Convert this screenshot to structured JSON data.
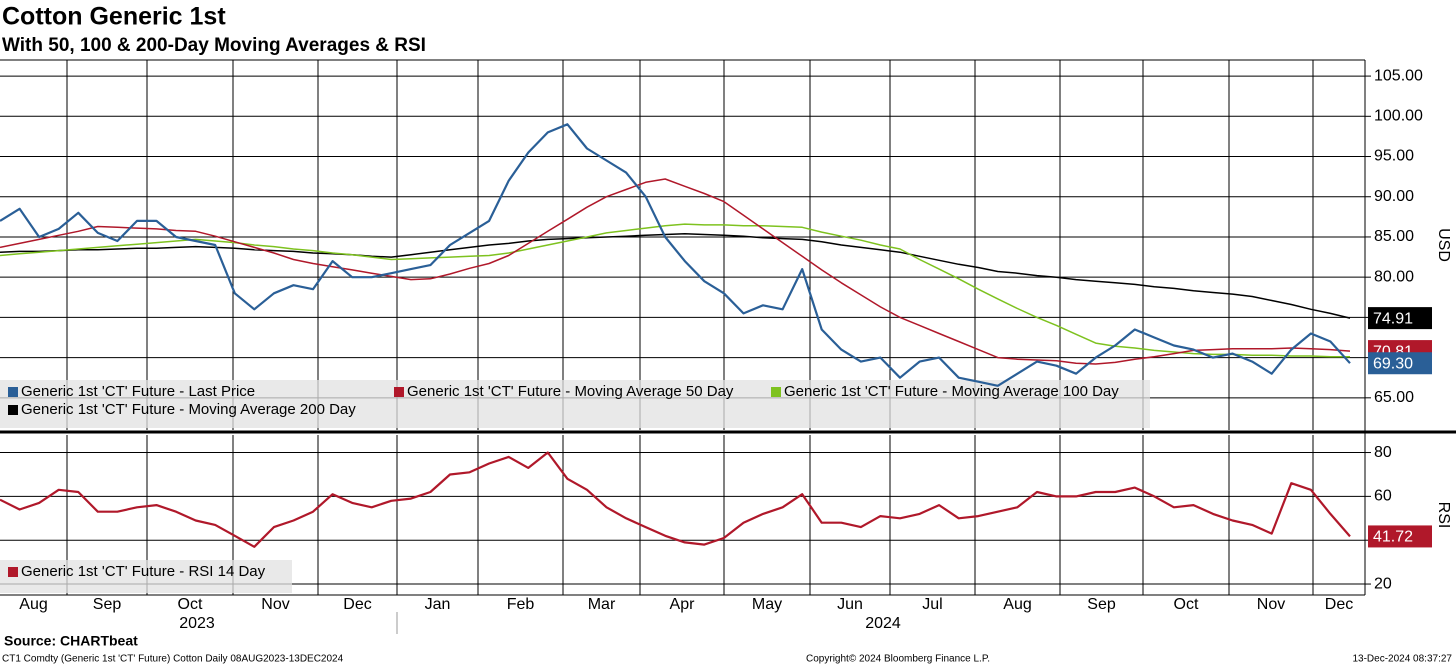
{
  "title": "Cotton Generic 1st",
  "subtitle": "With 50, 100 & 200-Day Moving Averages & RSI",
  "source": "Source: CHARTbeat",
  "footer_left": "CT1 Comdty (Generic 1st 'CT' Future) Cotton  Daily 08AUG2023-13DEC2024",
  "footer_center": "Copyright© 2024 Bloomberg Finance L.P.",
  "footer_right": "13-Dec-2024 08:37:27",
  "month_labels": [
    "Aug",
    "Sep",
    "Oct",
    "Nov",
    "Dec",
    "Jan",
    "Feb",
    "Mar",
    "Apr",
    "May",
    "Jun",
    "Jul",
    "Aug",
    "Sep",
    "Oct",
    "Nov",
    "Dec"
  ],
  "year_labels": [
    "2023",
    "2024"
  ],
  "chart_data": [
    {
      "type": "line",
      "y_label": "USD",
      "grid": true,
      "ylim": [
        61,
        107
      ],
      "yticks": [
        {
          "value": 65,
          "label": "65.00"
        },
        {
          "value": 70,
          "label": "70.00"
        },
        {
          "value": 75,
          "label": "75.00"
        },
        {
          "value": 80,
          "label": "80.00"
        },
        {
          "value": 85,
          "label": "85.00"
        },
        {
          "value": 90,
          "label": "90.00"
        },
        {
          "value": 95,
          "label": "95.00"
        },
        {
          "value": 100,
          "label": "100.00"
        },
        {
          "value": 105,
          "label": "105.00"
        }
      ],
      "series": [
        {
          "name": "Generic 1st 'CT' Future - Last Price",
          "color": "#2a5f97",
          "last_label": "69.30",
          "values": [
            87,
            88.5,
            85,
            86,
            88,
            85.5,
            84.5,
            87,
            87,
            85,
            84.5,
            84,
            78,
            76,
            78,
            79,
            78.5,
            82,
            80,
            80,
            80.5,
            81,
            81.5,
            84,
            85.5,
            87,
            92,
            95.5,
            98,
            99,
            96,
            94.5,
            93,
            90,
            85,
            82,
            79.5,
            78,
            75.5,
            76.5,
            76,
            81,
            73.5,
            71,
            69.5,
            70,
            67.5,
            69.5,
            70,
            67.5,
            67,
            66.5,
            68,
            69.5,
            69,
            68,
            70,
            71.5,
            73.5,
            72.5,
            71.5,
            71,
            70,
            70.5,
            69.5,
            68,
            71,
            73,
            72,
            69.3
          ]
        },
        {
          "name": "Generic 1st 'CT' Future - Moving Average 50 Day",
          "color": "#b0182a",
          "last_label": "70.81",
          "values": [
            83.7,
            84.2,
            84.7,
            85.2,
            85.7,
            86.3,
            86.2,
            86.1,
            86,
            85.8,
            85.7,
            85.1,
            84.4,
            83.7,
            83,
            82.2,
            81.7,
            81.3,
            80.9,
            80.5,
            80.1,
            79.7,
            79.8,
            80.4,
            81.1,
            81.7,
            82.7,
            84.2,
            85.7,
            87.2,
            88.7,
            90,
            90.9,
            91.8,
            92.2,
            91.3,
            90.4,
            89.4,
            87.7,
            86,
            84.3,
            82.6,
            80.9,
            79.3,
            77.8,
            76.3,
            75,
            74,
            73,
            72,
            71,
            70,
            69.8,
            69.7,
            69.6,
            69.3,
            69.2,
            69.4,
            69.8,
            70.1,
            70.5,
            70.9,
            71,
            71.1,
            71.1,
            71.1,
            71.2,
            71.1,
            71,
            70.81
          ]
        },
        {
          "name": "Generic 1st 'CT' Future - Moving Average 100 Day",
          "color": "#7ec21f",
          "values": [
            82.7,
            82.9,
            83.1,
            83.3,
            83.5,
            83.7,
            83.9,
            84.1,
            84.3,
            84.5,
            84.7,
            84.5,
            84.3,
            84,
            83.8,
            83.5,
            83.3,
            83,
            82.8,
            82.5,
            82.2,
            82.3,
            82.4,
            82.5,
            82.6,
            82.7,
            83,
            83.5,
            84,
            84.5,
            85,
            85.5,
            85.8,
            86.1,
            86.4,
            86.6,
            86.5,
            86.5,
            86.4,
            86.4,
            86.3,
            86.2,
            85.6,
            85.1,
            84.6,
            84,
            83.5,
            82.2,
            81,
            79.8,
            78.5,
            77.3,
            76.1,
            75,
            74,
            72.9,
            71.8,
            71.4,
            71.2,
            70.9,
            70.7,
            70.5,
            70.4,
            70.4,
            70.3,
            70.3,
            70.2,
            70.2,
            70.1,
            70.1
          ]
        },
        {
          "name": "Generic 1st 'CT' Future - Moving Average 200 Day",
          "color": "#000000",
          "last_label": "74.91",
          "values": [
            83.1,
            83.2,
            83.2,
            83.3,
            83.4,
            83.4,
            83.5,
            83.6,
            83.6,
            83.7,
            83.8,
            83.7,
            83.6,
            83.4,
            83.3,
            83.2,
            83,
            82.9,
            82.8,
            82.6,
            82.5,
            82.8,
            83.1,
            83.4,
            83.7,
            84,
            84.2,
            84.5,
            84.7,
            84.8,
            84.9,
            85,
            85.1,
            85.2,
            85.3,
            85.4,
            85.3,
            85.2,
            85.1,
            84.9,
            84.8,
            84.7,
            84.4,
            84,
            83.7,
            83.4,
            83.1,
            82.6,
            82.1,
            81.6,
            81.2,
            80.7,
            80.5,
            80.2,
            80,
            79.7,
            79.5,
            79.3,
            79.1,
            78.8,
            78.6,
            78.3,
            78.1,
            77.9,
            77.6,
            77.1,
            76.6,
            76,
            75.5,
            74.91
          ]
        }
      ]
    },
    {
      "type": "line",
      "y_label": "RSI",
      "grid": true,
      "ylim": [
        15,
        88
      ],
      "yticks": [
        20,
        40,
        60,
        80
      ],
      "series": [
        {
          "name": "Generic 1st 'CT' Future - RSI 14 Day",
          "color": "#b0182a",
          "last_label": "41.72",
          "values": [
            58.5,
            54,
            57,
            63,
            62,
            53,
            53,
            55,
            56,
            53,
            49,
            47,
            42,
            37,
            46,
            49,
            53,
            61,
            57,
            55,
            58,
            59,
            62,
            70,
            71,
            75,
            78,
            73,
            80,
            68,
            63,
            55,
            50,
            46,
            42,
            39,
            38,
            41,
            48,
            52,
            55,
            61,
            48,
            48,
            46,
            51,
            50,
            52,
            56,
            50,
            51,
            53,
            55,
            62,
            60,
            60,
            62,
            62,
            64,
            60,
            55,
            56,
            52,
            49,
            47,
            43,
            66,
            63,
            52,
            41.72
          ]
        }
      ]
    }
  ]
}
